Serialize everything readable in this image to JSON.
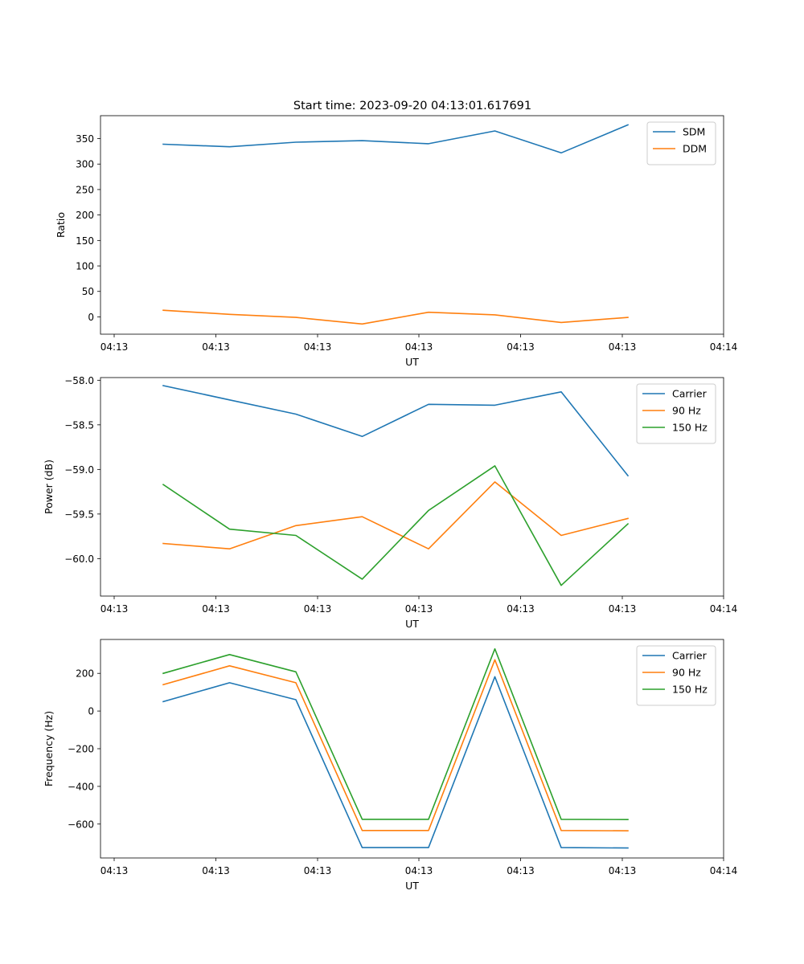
{
  "title": "Start time: 2023-09-20 04:13:01.617691",
  "colors": {
    "blue": "#1f77b4",
    "orange": "#ff7f0e",
    "green": "#2ca02c"
  },
  "chart_data": [
    {
      "type": "line",
      "xlabel": "UT",
      "ylabel": "Ratio",
      "x_tick_labels": [
        "04:13",
        "04:13",
        "04:13",
        "04:13",
        "04:13",
        "04:13",
        "04:14"
      ],
      "y_ticks": [
        0,
        50,
        100,
        150,
        200,
        250,
        300,
        350
      ],
      "ylim": [
        -34,
        395
      ],
      "legend_position": "top-right",
      "series": [
        {
          "name": "SDM",
          "color": "#1f77b4",
          "values": [
            339,
            334,
            343,
            346,
            340,
            365,
            322,
            377
          ]
        },
        {
          "name": "DDM",
          "color": "#ff7f0e",
          "values": [
            13,
            5,
            -1,
            -14,
            9,
            4,
            -11,
            -1
          ]
        }
      ]
    },
    {
      "type": "line",
      "xlabel": "UT",
      "ylabel": "Power (dB)",
      "x_tick_labels": [
        "04:13",
        "04:13",
        "04:13",
        "04:13",
        "04:13",
        "04:13",
        "04:14"
      ],
      "y_ticks": [
        -60.0,
        -59.5,
        -59.0,
        -58.5,
        -58.0
      ],
      "y_tick_labels": [
        "−60.0",
        "−59.5",
        "−59.0",
        "−58.5",
        "−58.0"
      ],
      "ylim": [
        -60.42,
        -57.97
      ],
      "legend_position": "top-right",
      "series": [
        {
          "name": "Carrier",
          "color": "#1f77b4",
          "values": [
            -58.06,
            -58.22,
            -58.38,
            -58.63,
            -58.27,
            -58.28,
            -58.13,
            -59.07
          ]
        },
        {
          "name": "90 Hz",
          "color": "#ff7f0e",
          "values": [
            -59.83,
            -59.89,
            -59.63,
            -59.53,
            -59.89,
            -59.14,
            -59.74,
            -59.55
          ]
        },
        {
          "name": "150 Hz",
          "color": "#2ca02c",
          "values": [
            -59.17,
            -59.67,
            -59.74,
            -60.23,
            -59.46,
            -58.96,
            -60.3,
            -59.61
          ]
        }
      ]
    },
    {
      "type": "line",
      "xlabel": "UT",
      "ylabel": "Frequency (Hz)",
      "x_tick_labels": [
        "04:13",
        "04:13",
        "04:13",
        "04:13",
        "04:13",
        "04:13",
        "04:14"
      ],
      "y_ticks": [
        -600,
        -400,
        -200,
        0,
        200
      ],
      "y_tick_labels": [
        "−600",
        "−400",
        "−200",
        "0",
        "200"
      ],
      "ylim": [
        -780,
        380
      ],
      "legend_position": "top-right",
      "series": [
        {
          "name": "Carrier",
          "color": "#1f77b4",
          "values": [
            50,
            150,
            60,
            -725,
            -725,
            182,
            -725,
            -727
          ]
        },
        {
          "name": "90 Hz",
          "color": "#ff7f0e",
          "values": [
            140,
            240,
            150,
            -634,
            -634,
            272,
            -634,
            -636
          ]
        },
        {
          "name": "150 Hz",
          "color": "#2ca02c",
          "values": [
            200,
            300,
            208,
            -575,
            -575,
            330,
            -575,
            -576
          ]
        }
      ]
    }
  ]
}
